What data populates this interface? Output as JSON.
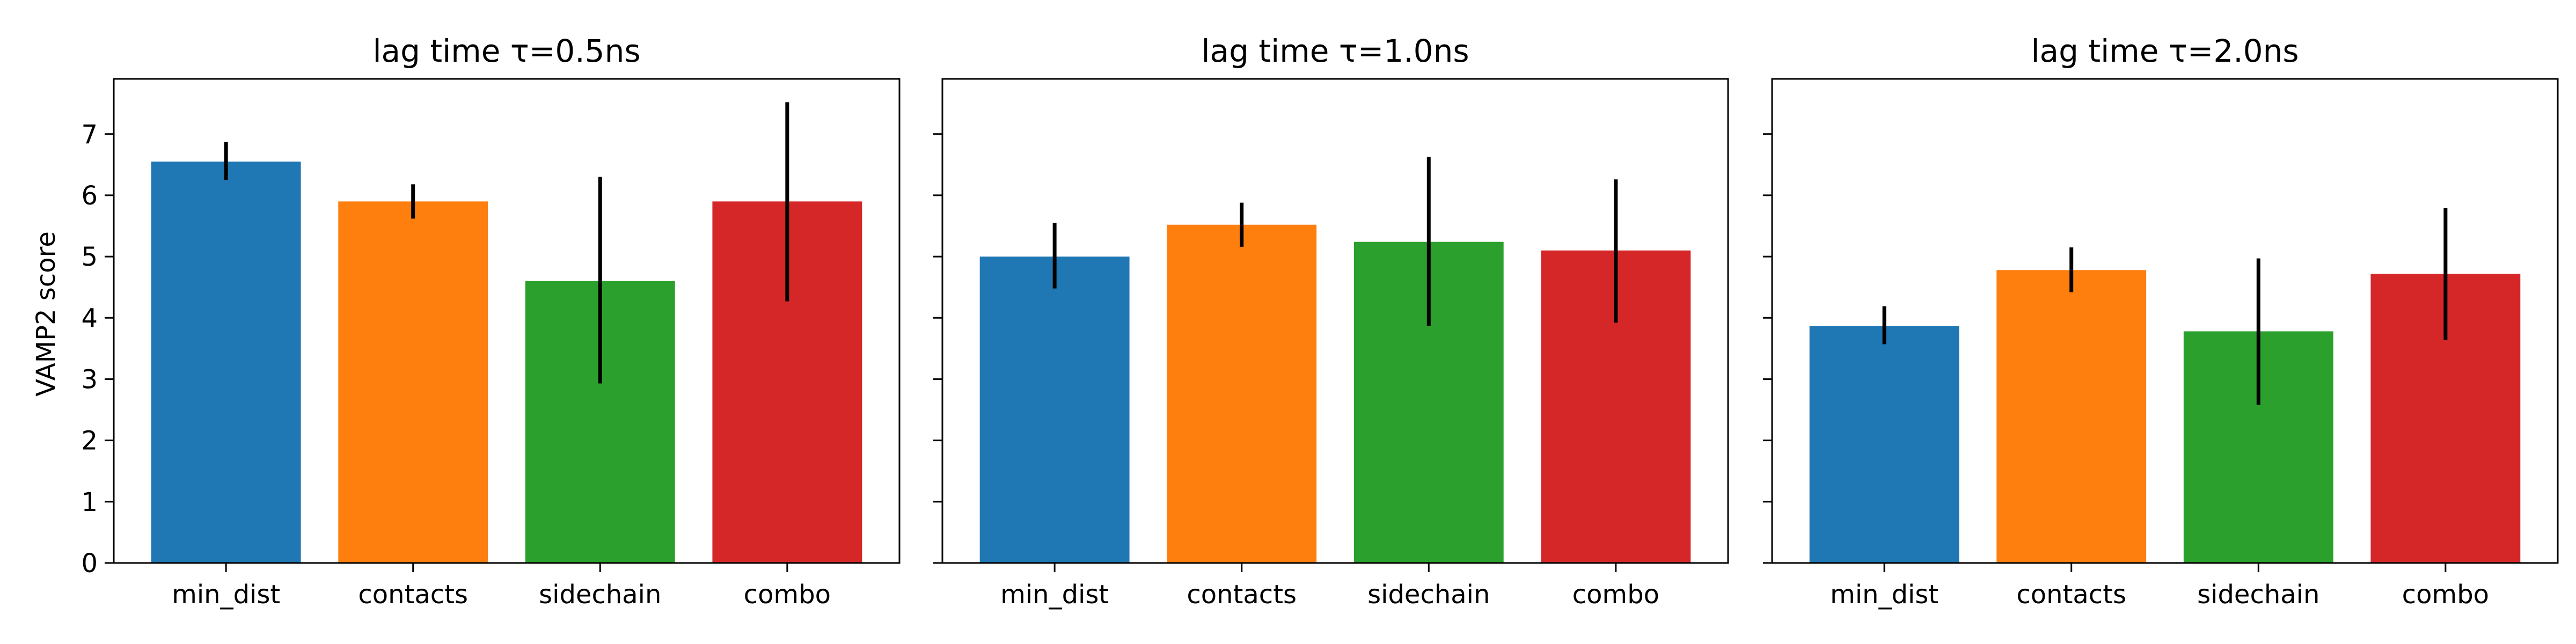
{
  "figure": {
    "ylabel": "VAMP2 score"
  },
  "colors": {
    "min_dist": "#1f77b4",
    "contacts": "#ff7f0e",
    "sidechain": "#2ca02c",
    "combo": "#d62728",
    "error_bar": "#000000"
  },
  "chart_data": [
    {
      "type": "bar",
      "title": "lag time τ=0.5ns",
      "categories": [
        "min_dist",
        "contacts",
        "sidechain",
        "combo"
      ],
      "values": [
        6.55,
        5.9,
        4.6,
        5.9
      ],
      "error_low": [
        6.25,
        5.62,
        2.93,
        4.27
      ],
      "error_high": [
        6.87,
        6.18,
        6.3,
        7.52
      ],
      "ylim": [
        0,
        7.9
      ],
      "yticks": [
        0,
        1,
        2,
        3,
        4,
        5,
        6,
        7
      ],
      "ylabel": "VAMP2 score",
      "grid": false
    },
    {
      "type": "bar",
      "title": "lag time τ=1.0ns",
      "categories": [
        "min_dist",
        "contacts",
        "sidechain",
        "combo"
      ],
      "values": [
        5.0,
        5.52,
        5.24,
        5.1
      ],
      "error_low": [
        4.48,
        5.16,
        3.87,
        3.92
      ],
      "error_high": [
        5.55,
        5.88,
        6.63,
        6.26
      ],
      "ylim": [
        0,
        7.9
      ],
      "yticks": [
        0,
        1,
        2,
        3,
        4,
        5,
        6,
        7
      ],
      "grid": false
    },
    {
      "type": "bar",
      "title": "lag time τ=2.0ns",
      "categories": [
        "min_dist",
        "contacts",
        "sidechain",
        "combo"
      ],
      "values": [
        3.87,
        4.78,
        3.78,
        4.72
      ],
      "error_low": [
        3.57,
        4.42,
        2.58,
        3.64
      ],
      "error_high": [
        4.19,
        5.15,
        4.97,
        5.79
      ],
      "ylim": [
        0,
        7.9
      ],
      "yticks": [
        0,
        1,
        2,
        3,
        4,
        5,
        6,
        7
      ],
      "grid": false
    }
  ]
}
